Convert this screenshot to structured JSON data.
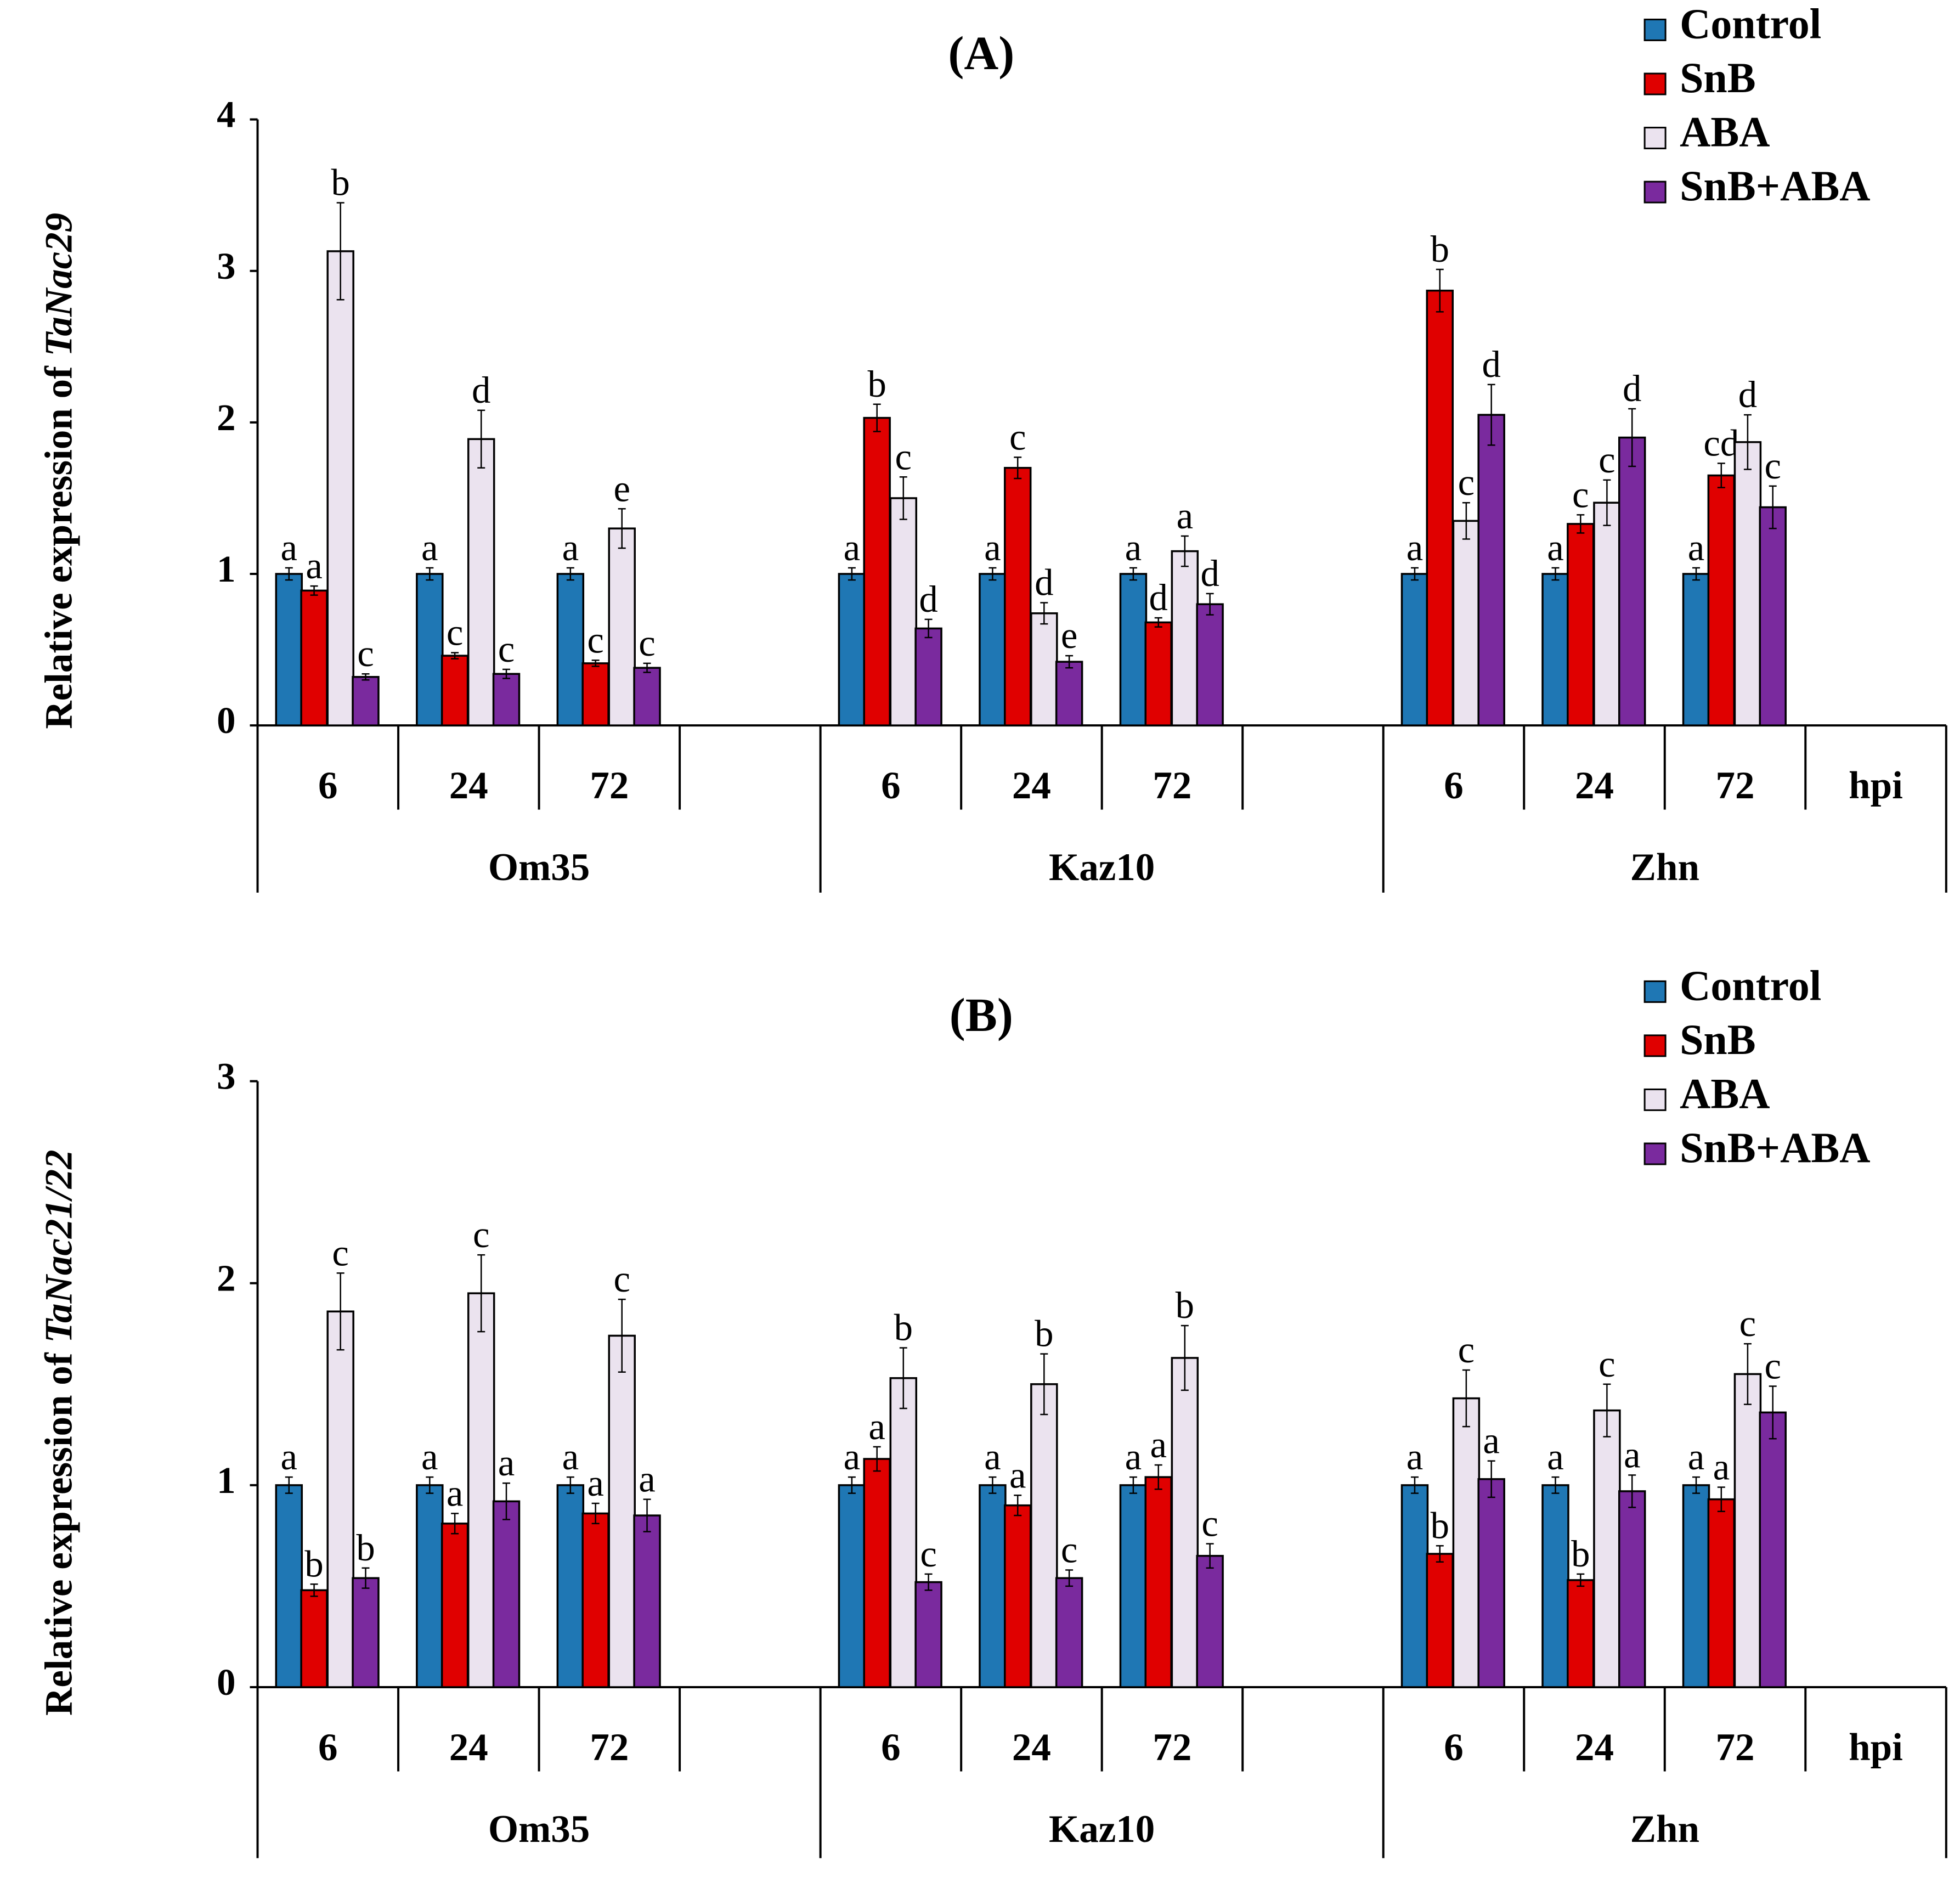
{
  "chart_data": [
    {
      "type": "bar",
      "panel_label": "(A)",
      "gene": "TaNac29",
      "ylabel_prefix": "Relative expression of ",
      "ylabel_gene": "TaNac29",
      "ylim": [
        0,
        4
      ],
      "yticks": [
        "0",
        "1",
        "2",
        "3",
        "4"
      ],
      "hpi_label": "hpi",
      "cultivars": [
        "Om35",
        "Kaz10",
        "Zhn"
      ],
      "timepoints": [
        "6",
        "24",
        "72"
      ],
      "legend": [
        "Control",
        "SnB",
        "ABA",
        "SnB+ABA"
      ],
      "groups": [
        {
          "cultivar": "Om35",
          "time": "6",
          "values": [
            1.0,
            0.89,
            3.13,
            0.32
          ],
          "errors": [
            0.04,
            0.03,
            0.32,
            0.02
          ],
          "letters": [
            "a",
            "a",
            "b",
            "c"
          ]
        },
        {
          "cultivar": "Om35",
          "time": "24",
          "values": [
            1.0,
            0.46,
            1.89,
            0.34
          ],
          "errors": [
            0.04,
            0.02,
            0.19,
            0.03
          ],
          "letters": [
            "a",
            "c",
            "d",
            "c"
          ]
        },
        {
          "cultivar": "Om35",
          "time": "72",
          "values": [
            1.0,
            0.41,
            1.3,
            0.38
          ],
          "errors": [
            0.04,
            0.02,
            0.13,
            0.03
          ],
          "letters": [
            "a",
            "c",
            "e",
            "c"
          ]
        },
        {
          "cultivar": "Kaz10",
          "time": "6",
          "values": [
            1.0,
            2.03,
            1.5,
            0.64
          ],
          "errors": [
            0.04,
            0.09,
            0.14,
            0.06
          ],
          "letters": [
            "a",
            "b",
            "c",
            "d"
          ]
        },
        {
          "cultivar": "Kaz10",
          "time": "24",
          "values": [
            1.0,
            1.7,
            0.74,
            0.42
          ],
          "errors": [
            0.04,
            0.07,
            0.07,
            0.04
          ],
          "letters": [
            "a",
            "c",
            "d",
            "e"
          ]
        },
        {
          "cultivar": "Kaz10",
          "time": "72",
          "values": [
            1.0,
            0.68,
            1.15,
            0.8
          ],
          "errors": [
            0.04,
            0.03,
            0.1,
            0.07
          ],
          "letters": [
            "a",
            "d",
            "a",
            "d"
          ]
        },
        {
          "cultivar": "Zhn",
          "time": "6",
          "values": [
            1.0,
            2.87,
            1.35,
            2.05
          ],
          "errors": [
            0.04,
            0.14,
            0.12,
            0.2
          ],
          "letters": [
            "a",
            "b",
            "c",
            "d"
          ]
        },
        {
          "cultivar": "Zhn",
          "time": "24",
          "values": [
            1.0,
            1.33,
            1.47,
            1.9
          ],
          "errors": [
            0.04,
            0.06,
            0.15,
            0.19
          ],
          "letters": [
            "a",
            "c",
            "c",
            "d"
          ]
        },
        {
          "cultivar": "Zhn",
          "time": "72",
          "values": [
            1.0,
            1.65,
            1.87,
            1.44
          ],
          "errors": [
            0.04,
            0.08,
            0.18,
            0.14
          ],
          "letters": [
            "a",
            "cd",
            "d",
            "c"
          ]
        }
      ]
    },
    {
      "type": "bar",
      "panel_label": "(B)",
      "gene": "TaNac21/22",
      "ylabel_prefix": "Relative expression of ",
      "ylabel_gene": "TaNac21/22",
      "ylim": [
        0,
        3
      ],
      "yticks": [
        "0",
        "1",
        "2",
        "3"
      ],
      "hpi_label": "hpi",
      "cultivars": [
        "Om35",
        "Kaz10",
        "Zhn"
      ],
      "timepoints": [
        "6",
        "24",
        "72"
      ],
      "legend": [
        "Control",
        "SnB",
        "ABA",
        "SnB+ABA"
      ],
      "groups": [
        {
          "cultivar": "Om35",
          "time": "6",
          "values": [
            1.0,
            0.48,
            1.86,
            0.54
          ],
          "errors": [
            0.04,
            0.03,
            0.19,
            0.05
          ],
          "letters": [
            "a",
            "b",
            "c",
            "b"
          ]
        },
        {
          "cultivar": "Om35",
          "time": "24",
          "values": [
            1.0,
            0.81,
            1.95,
            0.92
          ],
          "errors": [
            0.04,
            0.05,
            0.19,
            0.09
          ],
          "letters": [
            "a",
            "a",
            "c",
            "a"
          ]
        },
        {
          "cultivar": "Om35",
          "time": "72",
          "values": [
            1.0,
            0.86,
            1.74,
            0.85
          ],
          "errors": [
            0.04,
            0.05,
            0.18,
            0.08
          ],
          "letters": [
            "a",
            "a",
            "c",
            "a"
          ]
        },
        {
          "cultivar": "Kaz10",
          "time": "6",
          "values": [
            1.0,
            1.13,
            1.53,
            0.52
          ],
          "errors": [
            0.04,
            0.06,
            0.15,
            0.04
          ],
          "letters": [
            "a",
            "a",
            "b",
            "c"
          ]
        },
        {
          "cultivar": "Kaz10",
          "time": "24",
          "values": [
            1.0,
            0.9,
            1.5,
            0.54
          ],
          "errors": [
            0.04,
            0.05,
            0.15,
            0.04
          ],
          "letters": [
            "a",
            "a",
            "b",
            "c"
          ]
        },
        {
          "cultivar": "Kaz10",
          "time": "72",
          "values": [
            1.0,
            1.04,
            1.63,
            0.65
          ],
          "errors": [
            0.04,
            0.06,
            0.16,
            0.06
          ],
          "letters": [
            "a",
            "a",
            "b",
            "c"
          ]
        },
        {
          "cultivar": "Zhn",
          "time": "6",
          "values": [
            1.0,
            0.66,
            1.43,
            1.03
          ],
          "errors": [
            0.04,
            0.04,
            0.14,
            0.09
          ],
          "letters": [
            "a",
            "b",
            "c",
            "a"
          ]
        },
        {
          "cultivar": "Zhn",
          "time": "24",
          "values": [
            1.0,
            0.53,
            1.37,
            0.97
          ],
          "errors": [
            0.04,
            0.03,
            0.13,
            0.08
          ],
          "letters": [
            "a",
            "b",
            "c",
            "a"
          ]
        },
        {
          "cultivar": "Zhn",
          "time": "72",
          "values": [
            1.0,
            0.93,
            1.55,
            1.36
          ],
          "errors": [
            0.04,
            0.06,
            0.15,
            0.13
          ],
          "letters": [
            "a",
            "a",
            "c",
            "c"
          ]
        }
      ]
    }
  ],
  "colors": {
    "control": "#1f77b4",
    "snb": "#e00000",
    "aba": "#ebe3ef",
    "snb_aba": "#7a2a9e",
    "outline": "#000000"
  }
}
